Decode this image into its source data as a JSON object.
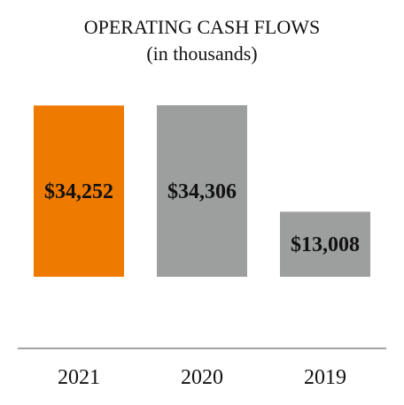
{
  "chart_data": {
    "type": "bar",
    "title": "OPERATING CASH FLOWS",
    "subtitle": "(in thousands)",
    "categories": [
      "2021",
      "2020",
      "2019"
    ],
    "values": [
      34252,
      34306,
      13008
    ],
    "value_labels": [
      "$34,252",
      "$34,306",
      "$13,008"
    ],
    "colors": [
      "#ee7a00",
      "#9d9f9e",
      "#9d9f9e"
    ],
    "axis_color": "#a3a3a3",
    "xlabel": "",
    "ylabel": "",
    "ylim": [
      0,
      40000
    ],
    "grid": false,
    "legend": "none"
  }
}
